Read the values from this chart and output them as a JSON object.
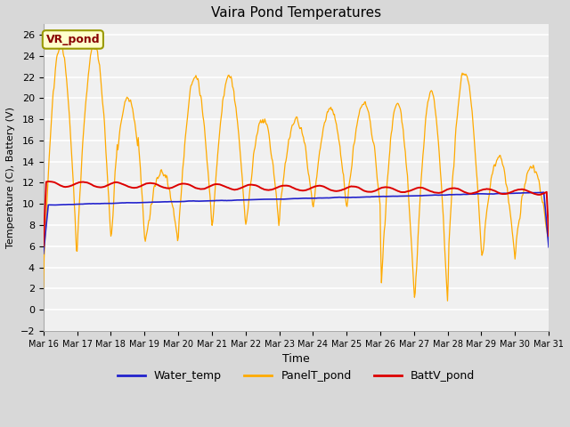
{
  "title": "Vaira Pond Temperatures",
  "xlabel": "Time",
  "ylabel": "Temperature (C), Battery (V)",
  "ylim": [
    -2,
    27
  ],
  "yticks": [
    -2,
    0,
    2,
    4,
    6,
    8,
    10,
    12,
    14,
    16,
    18,
    20,
    22,
    24,
    26
  ],
  "outer_bg": "#d8d8d8",
  "plot_bg_color": "#f0f0f0",
  "grid_color": "#ffffff",
  "water_temp_color": "#2222cc",
  "panel_temp_color": "#ffaa00",
  "batt_color": "#dd0000",
  "annotation_text": "VR_pond",
  "annotation_bg": "#ffffcc",
  "annotation_border": "#999900",
  "legend_entries": [
    "Water_temp",
    "PanelT_pond",
    "BattV_pond"
  ],
  "xtick_labels": [
    "Mar 16",
    "Mar 17",
    "Mar 18",
    "Mar 19",
    "Mar 20",
    "Mar 21",
    "Mar 22",
    "Mar 23",
    "Mar 24",
    "Mar 25",
    "Mar 26",
    "Mar 27",
    "Mar 28",
    "Mar 29",
    "Mar 30",
    "Mar 31"
  ],
  "figsize": [
    6.4,
    4.8
  ],
  "dpi": 100
}
